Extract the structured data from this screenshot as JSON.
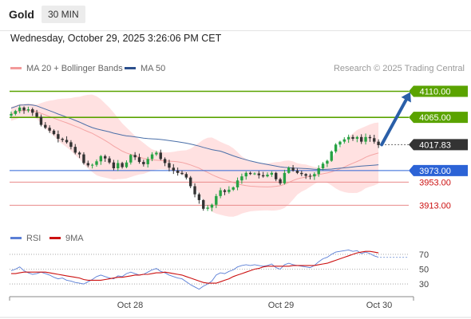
{
  "header": {
    "symbol": "Gold",
    "timeframe": "30 MIN"
  },
  "datetime": "Wednesday, October 29, 2025 3:26:06 PM CET",
  "legend": {
    "ma20_label": "MA 20 + Bollinger Bands",
    "ma50_label": "MA 50",
    "credit": "Research © 2025 Trading Central",
    "rsi_label": "RSI",
    "ma9_label": "9MA"
  },
  "colors": {
    "up": "#27a243",
    "down": "#333333",
    "resistance": "#5aa300",
    "support": "#2c63d6",
    "support_light": "#e88a8a",
    "ma20": "#f4a4a4",
    "band_fill": "#ffdcdc",
    "ma50": "#4a6fa8",
    "rsi": "#5b7fd6",
    "ma9": "#cc1111",
    "current": "#333333"
  },
  "chart_data": [
    {
      "type": "candlestick",
      "ylim": [
        3875,
        4130
      ],
      "x_ticks": [
        "Oct 28",
        "Oct 29",
        "Oct 30"
      ],
      "current_price": 4017.83,
      "levels": [
        {
          "label": "4110.00",
          "value": 4110.0,
          "kind": "resistance"
        },
        {
          "label": "4065.00",
          "value": 4065.0,
          "kind": "resistance"
        },
        {
          "label": "4017.83",
          "value": 4017.83,
          "kind": "current"
        },
        {
          "label": "3973.00",
          "value": 3973.0,
          "kind": "support"
        },
        {
          "label": "3953.00",
          "value": 3953.0,
          "kind": "support_light"
        },
        {
          "label": "3913.00",
          "value": 3913.0,
          "kind": "support_light"
        }
      ],
      "projection": {
        "from": 4017.83,
        "to": 4110.0
      },
      "closes": [
        4071,
        4076,
        4082,
        4077,
        4079,
        4073,
        4066,
        4052,
        4047,
        4042,
        4036,
        4028,
        4026,
        4022,
        4014,
        4004,
        4001,
        3986,
        3982,
        3983,
        3989,
        3998,
        3994,
        3987,
        3977,
        3986,
        3979,
        3987,
        4000,
        3996,
        3988,
        3984,
        3993,
        4001,
        4004,
        3993,
        3986,
        3978,
        3973,
        3969,
        3967,
        3961,
        3946,
        3932,
        3922,
        3907,
        3909,
        3914,
        3929,
        3939,
        3936,
        3940,
        3944,
        3956,
        3963,
        3969,
        3967,
        3968,
        3965,
        3963,
        3966,
        3969,
        3958,
        3951,
        3969,
        3978,
        3973,
        3969,
        3967,
        3964,
        3963,
        3967,
        3977,
        3985,
        3990,
        4006,
        4018,
        4023,
        4027,
        4031,
        4028,
        4031,
        4023,
        4031,
        4029,
        4023,
        4017
      ]
    },
    {
      "type": "line",
      "name": "RSI",
      "ylim": [
        15,
        85
      ],
      "y_ticks": [
        70,
        50,
        30
      ],
      "series": [
        {
          "name": "RSI",
          "values": [
            48,
            50,
            53,
            48,
            45,
            43,
            44,
            46,
            44,
            42,
            39,
            37,
            38,
            35,
            34,
            32,
            31,
            30,
            33,
            36,
            40,
            42,
            40,
            38,
            37,
            41,
            40,
            44,
            46,
            44,
            42,
            43,
            46,
            49,
            51,
            47,
            45,
            42,
            40,
            38,
            37,
            33,
            29,
            26,
            23,
            27,
            30,
            34,
            42,
            45,
            44,
            47,
            49,
            53,
            55,
            56,
            55,
            56,
            55,
            54,
            55,
            57,
            52,
            50,
            56,
            58,
            56,
            55,
            54,
            53,
            52,
            55,
            60,
            64,
            66,
            70,
            73,
            74,
            75,
            76,
            74,
            75,
            71,
            73,
            71,
            68,
            66
          ]
        },
        {
          "name": "9MA",
          "values": [
            44,
            44,
            45,
            46,
            46,
            46,
            46,
            46,
            46,
            45,
            44,
            43,
            42,
            41,
            40,
            39,
            38,
            36,
            35,
            35,
            35,
            35,
            36,
            37,
            38,
            39,
            39,
            40,
            41,
            42,
            42,
            43,
            43,
            44,
            45,
            45,
            46,
            45,
            44,
            43,
            42,
            40,
            38,
            36,
            34,
            32,
            31,
            31,
            31,
            33,
            35,
            37,
            40,
            42,
            44,
            46,
            48,
            50,
            51,
            53,
            54,
            54,
            54,
            54,
            54,
            54,
            55,
            55,
            55,
            55,
            55,
            55,
            56,
            57,
            58,
            60,
            62,
            64,
            66,
            68,
            70,
            72,
            73,
            74,
            74,
            73,
            72
          ]
        }
      ]
    }
  ]
}
